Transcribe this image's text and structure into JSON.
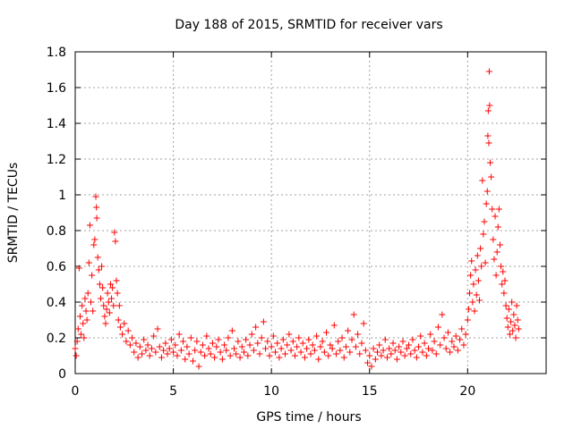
{
  "chart_data": {
    "type": "scatter",
    "title": "Day 188 of 2015, SRMTID for receiver vars",
    "xlabel": "GPS time / hours",
    "ylabel": "SRMTID / TECUs",
    "xlim": [
      0,
      24
    ],
    "ylim": [
      0,
      1.8
    ],
    "grid": true,
    "marker": "plus",
    "color": "#ff0000",
    "x_ticks": [
      0,
      5,
      10,
      15,
      20
    ],
    "x_tick_labels": [
      "0",
      "5",
      "10",
      "15",
      "20"
    ],
    "y_ticks": [
      0,
      0.2,
      0.4,
      0.6,
      0.8,
      1.0,
      1.2,
      1.4,
      1.6,
      1.8
    ],
    "y_tick_labels": [
      "0",
      "0.2",
      "0.4",
      "0.6",
      "0.8",
      "1",
      "1.2",
      "1.4",
      "1.6",
      "1.8"
    ],
    "series": [
      {
        "name": "SRMTID",
        "points": [
          [
            0.0,
            0.14
          ],
          [
            0.05,
            0.1
          ],
          [
            0.1,
            0.18
          ],
          [
            0.15,
            0.25
          ],
          [
            0.2,
            0.59
          ],
          [
            0.25,
            0.32
          ],
          [
            0.3,
            0.22
          ],
          [
            0.35,
            0.38
          ],
          [
            0.4,
            0.28
          ],
          [
            0.45,
            0.2
          ],
          [
            0.5,
            0.42
          ],
          [
            0.55,
            0.35
          ],
          [
            0.6,
            0.3
          ],
          [
            0.65,
            0.45
          ],
          [
            0.7,
            0.62
          ],
          [
            0.75,
            0.83
          ],
          [
            0.8,
            0.4
          ],
          [
            0.85,
            0.55
          ],
          [
            0.9,
            0.35
          ],
          [
            0.95,
            0.72
          ],
          [
            1.0,
            0.75
          ],
          [
            1.05,
            0.99
          ],
          [
            1.08,
            0.93
          ],
          [
            1.1,
            0.87
          ],
          [
            1.15,
            0.65
          ],
          [
            1.2,
            0.58
          ],
          [
            1.25,
            0.5
          ],
          [
            1.3,
            0.42
          ],
          [
            1.35,
            0.6
          ],
          [
            1.4,
            0.48
          ],
          [
            1.45,
            0.38
          ],
          [
            1.5,
            0.32
          ],
          [
            1.55,
            0.28
          ],
          [
            1.6,
            0.36
          ],
          [
            1.65,
            0.45
          ],
          [
            1.7,
            0.4
          ],
          [
            1.75,
            0.34
          ],
          [
            1.8,
            0.5
          ],
          [
            1.85,
            0.42
          ],
          [
            1.9,
            0.48
          ],
          [
            1.95,
            0.38
          ],
          [
            2.0,
            0.79
          ],
          [
            2.05,
            0.74
          ],
          [
            2.1,
            0.52
          ],
          [
            2.15,
            0.45
          ],
          [
            2.2,
            0.3
          ],
          [
            2.25,
            0.38
          ],
          [
            2.3,
            0.26
          ],
          [
            2.4,
            0.22
          ],
          [
            2.5,
            0.28
          ],
          [
            2.6,
            0.18
          ],
          [
            2.7,
            0.24
          ],
          [
            2.8,
            0.16
          ],
          [
            2.9,
            0.2
          ],
          [
            3.0,
            0.12
          ],
          [
            3.1,
            0.17
          ],
          [
            3.2,
            0.09
          ],
          [
            3.3,
            0.15
          ],
          [
            3.4,
            0.11
          ],
          [
            3.5,
            0.19
          ],
          [
            3.6,
            0.13
          ],
          [
            3.7,
            0.16
          ],
          [
            3.8,
            0.1
          ],
          [
            3.9,
            0.14
          ],
          [
            4.0,
            0.21
          ],
          [
            4.1,
            0.12
          ],
          [
            4.2,
            0.25
          ],
          [
            4.3,
            0.15
          ],
          [
            4.4,
            0.09
          ],
          [
            4.5,
            0.13
          ],
          [
            4.6,
            0.17
          ],
          [
            4.7,
            0.11
          ],
          [
            4.8,
            0.14
          ],
          [
            4.9,
            0.19
          ],
          [
            5.0,
            0.12
          ],
          [
            5.1,
            0.16
          ],
          [
            5.2,
            0.1
          ],
          [
            5.3,
            0.22
          ],
          [
            5.4,
            0.13
          ],
          [
            5.5,
            0.18
          ],
          [
            5.6,
            0.08
          ],
          [
            5.7,
            0.15
          ],
          [
            5.8,
            0.11
          ],
          [
            5.9,
            0.2
          ],
          [
            6.0,
            0.07
          ],
          [
            6.1,
            0.13
          ],
          [
            6.2,
            0.18
          ],
          [
            6.3,
            0.04
          ],
          [
            6.4,
            0.12
          ],
          [
            6.5,
            0.16
          ],
          [
            6.6,
            0.1
          ],
          [
            6.7,
            0.21
          ],
          [
            6.8,
            0.14
          ],
          [
            6.9,
            0.11
          ],
          [
            7.0,
            0.17
          ],
          [
            7.1,
            0.09
          ],
          [
            7.2,
            0.15
          ],
          [
            7.3,
            0.19
          ],
          [
            7.4,
            0.12
          ],
          [
            7.5,
            0.08
          ],
          [
            7.6,
            0.16
          ],
          [
            7.7,
            0.13
          ],
          [
            7.8,
            0.2
          ],
          [
            7.9,
            0.1
          ],
          [
            8.0,
            0.24
          ],
          [
            8.1,
            0.14
          ],
          [
            8.2,
            0.11
          ],
          [
            8.3,
            0.18
          ],
          [
            8.4,
            0.09
          ],
          [
            8.5,
            0.15
          ],
          [
            8.6,
            0.12
          ],
          [
            8.7,
            0.19
          ],
          [
            8.8,
            0.1
          ],
          [
            8.9,
            0.16
          ],
          [
            9.0,
            0.22
          ],
          [
            9.1,
            0.13
          ],
          [
            9.2,
            0.26
          ],
          [
            9.3,
            0.17
          ],
          [
            9.4,
            0.11
          ],
          [
            9.5,
            0.2
          ],
          [
            9.6,
            0.29
          ],
          [
            9.7,
            0.14
          ],
          [
            9.8,
            0.18
          ],
          [
            9.9,
            0.1
          ],
          [
            10.0,
            0.15
          ],
          [
            10.1,
            0.21
          ],
          [
            10.2,
            0.12
          ],
          [
            10.3,
            0.17
          ],
          [
            10.4,
            0.09
          ],
          [
            10.5,
            0.14
          ],
          [
            10.6,
            0.19
          ],
          [
            10.7,
            0.11
          ],
          [
            10.8,
            0.16
          ],
          [
            10.9,
            0.22
          ],
          [
            11.0,
            0.13
          ],
          [
            11.1,
            0.18
          ],
          [
            11.2,
            0.1
          ],
          [
            11.3,
            0.15
          ],
          [
            11.4,
            0.2
          ],
          [
            11.5,
            0.12
          ],
          [
            11.6,
            0.17
          ],
          [
            11.7,
            0.09
          ],
          [
            11.8,
            0.14
          ],
          [
            11.9,
            0.19
          ],
          [
            12.0,
            0.11
          ],
          [
            12.1,
            0.16
          ],
          [
            12.2,
            0.13
          ],
          [
            12.3,
            0.21
          ],
          [
            12.4,
            0.08
          ],
          [
            12.5,
            0.15
          ],
          [
            12.6,
            0.18
          ],
          [
            12.7,
            0.12
          ],
          [
            12.8,
            0.23
          ],
          [
            12.9,
            0.1
          ],
          [
            13.0,
            0.16
          ],
          [
            13.1,
            0.14
          ],
          [
            13.2,
            0.27
          ],
          [
            13.3,
            0.11
          ],
          [
            13.4,
            0.18
          ],
          [
            13.5,
            0.13
          ],
          [
            13.6,
            0.2
          ],
          [
            13.7,
            0.09
          ],
          [
            13.8,
            0.15
          ],
          [
            13.9,
            0.24
          ],
          [
            14.0,
            0.12
          ],
          [
            14.1,
            0.19
          ],
          [
            14.2,
            0.33
          ],
          [
            14.3,
            0.15
          ],
          [
            14.4,
            0.22
          ],
          [
            14.5,
            0.11
          ],
          [
            14.6,
            0.17
          ],
          [
            14.7,
            0.28
          ],
          [
            14.8,
            0.13
          ],
          [
            14.9,
            0.06
          ],
          [
            15.0,
            0.1
          ],
          [
            15.1,
            0.04
          ],
          [
            15.2,
            0.14
          ],
          [
            15.3,
            0.08
          ],
          [
            15.4,
            0.12
          ],
          [
            15.5,
            0.16
          ],
          [
            15.6,
            0.1
          ],
          [
            15.7,
            0.13
          ],
          [
            15.8,
            0.19
          ],
          [
            15.9,
            0.09
          ],
          [
            16.0,
            0.14
          ],
          [
            16.1,
            0.11
          ],
          [
            16.2,
            0.17
          ],
          [
            16.3,
            0.13
          ],
          [
            16.4,
            0.08
          ],
          [
            16.5,
            0.15
          ],
          [
            16.6,
            0.12
          ],
          [
            16.7,
            0.18
          ],
          [
            16.8,
            0.1
          ],
          [
            16.9,
            0.14
          ],
          [
            17.0,
            0.16
          ],
          [
            17.1,
            0.11
          ],
          [
            17.2,
            0.19
          ],
          [
            17.3,
            0.13
          ],
          [
            17.4,
            0.09
          ],
          [
            17.5,
            0.15
          ],
          [
            17.6,
            0.21
          ],
          [
            17.7,
            0.12
          ],
          [
            17.8,
            0.17
          ],
          [
            17.9,
            0.1
          ],
          [
            18.0,
            0.14
          ],
          [
            18.1,
            0.22
          ],
          [
            18.2,
            0.13
          ],
          [
            18.3,
            0.18
          ],
          [
            18.4,
            0.11
          ],
          [
            18.5,
            0.26
          ],
          [
            18.6,
            0.16
          ],
          [
            18.7,
            0.33
          ],
          [
            18.8,
            0.2
          ],
          [
            18.9,
            0.14
          ],
          [
            19.0,
            0.23
          ],
          [
            19.1,
            0.12
          ],
          [
            19.2,
            0.18
          ],
          [
            19.3,
            0.15
          ],
          [
            19.4,
            0.21
          ],
          [
            19.5,
            0.13
          ],
          [
            19.6,
            0.19
          ],
          [
            19.7,
            0.25
          ],
          [
            19.8,
            0.16
          ],
          [
            19.9,
            0.22
          ],
          [
            20.0,
            0.3
          ],
          [
            20.05,
            0.36
          ],
          [
            20.1,
            0.45
          ],
          [
            20.15,
            0.55
          ],
          [
            20.2,
            0.63
          ],
          [
            20.25,
            0.4
          ],
          [
            20.3,
            0.5
          ],
          [
            20.35,
            0.35
          ],
          [
            20.4,
            0.58
          ],
          [
            20.45,
            0.44
          ],
          [
            20.5,
            0.66
          ],
          [
            20.55,
            0.52
          ],
          [
            20.6,
            0.41
          ],
          [
            20.65,
            0.7
          ],
          [
            20.7,
            0.6
          ],
          [
            20.75,
            1.08
          ],
          [
            20.8,
            0.78
          ],
          [
            20.85,
            0.85
          ],
          [
            20.9,
            0.62
          ],
          [
            20.95,
            0.95
          ],
          [
            21.0,
            1.02
          ],
          [
            21.03,
            1.33
          ],
          [
            21.05,
            1.47
          ],
          [
            21.08,
            1.29
          ],
          [
            21.1,
            1.69
          ],
          [
            21.12,
            1.5
          ],
          [
            21.15,
            1.18
          ],
          [
            21.2,
            1.1
          ],
          [
            21.25,
            0.92
          ],
          [
            21.3,
            0.75
          ],
          [
            21.35,
            0.64
          ],
          [
            21.4,
            0.88
          ],
          [
            21.45,
            0.55
          ],
          [
            21.5,
            0.68
          ],
          [
            21.55,
            0.82
          ],
          [
            21.6,
            0.92
          ],
          [
            21.65,
            0.72
          ],
          [
            21.7,
            0.6
          ],
          [
            21.75,
            0.5
          ],
          [
            21.8,
            0.57
          ],
          [
            21.85,
            0.45
          ],
          [
            21.9,
            0.52
          ],
          [
            21.95,
            0.38
          ],
          [
            22.0,
            0.31
          ],
          [
            22.05,
            0.26
          ],
          [
            22.1,
            0.36
          ],
          [
            22.15,
            0.22
          ],
          [
            22.2,
            0.29
          ],
          [
            22.25,
            0.4
          ],
          [
            22.3,
            0.24
          ],
          [
            22.35,
            0.33
          ],
          [
            22.4,
            0.27
          ],
          [
            22.45,
            0.2
          ],
          [
            22.5,
            0.38
          ],
          [
            22.55,
            0.3
          ],
          [
            22.6,
            0.25
          ]
        ]
      }
    ]
  }
}
